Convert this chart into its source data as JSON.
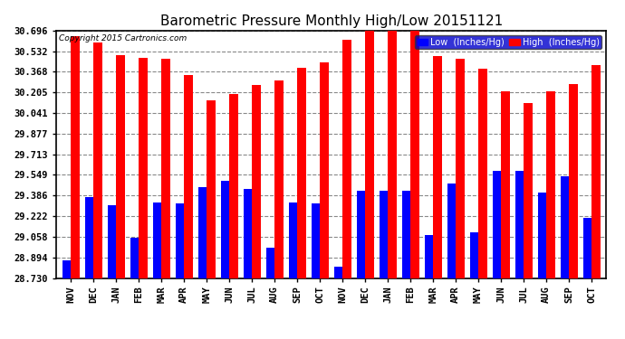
{
  "title": "Barometric Pressure Monthly High/Low 20151121",
  "copyright": "Copyright 2015 Cartronics.com",
  "legend_low": "Low  (Inches/Hg)",
  "legend_high": "High  (Inches/Hg)",
  "categories": [
    "NOV",
    "DEC",
    "JAN",
    "FEB",
    "MAR",
    "APR",
    "MAY",
    "JUN",
    "JUL",
    "AUG",
    "SEP",
    "OCT",
    "NOV",
    "DEC",
    "JAN",
    "FEB",
    "MAR",
    "APR",
    "MAY",
    "JUN",
    "JUL",
    "AUG",
    "SEP",
    "OCT"
  ],
  "high_values": [
    30.65,
    30.6,
    30.5,
    30.48,
    30.47,
    30.34,
    30.14,
    30.19,
    30.26,
    30.3,
    30.4,
    30.44,
    30.62,
    30.693,
    30.72,
    30.7,
    30.49,
    30.47,
    30.39,
    30.21,
    30.12,
    30.21,
    30.27,
    30.42
  ],
  "low_values": [
    28.87,
    29.37,
    29.31,
    29.05,
    29.33,
    29.32,
    29.45,
    29.5,
    29.44,
    28.97,
    29.33,
    29.32,
    28.82,
    29.42,
    29.42,
    29.42,
    29.07,
    29.48,
    29.09,
    29.58,
    29.58,
    29.41,
    29.54,
    29.21
  ],
  "color_high": "#ff0000",
  "color_low": "#0000ff",
  "ymin": 28.73,
  "ymax": 30.696,
  "yticks": [
    28.73,
    28.894,
    29.058,
    29.222,
    29.386,
    29.549,
    29.713,
    29.877,
    30.041,
    30.205,
    30.368,
    30.532,
    30.696
  ],
  "background_color": "#ffffff",
  "plot_bg_color": "#ffffff",
  "grid_color": "#888888",
  "title_fontsize": 11,
  "tick_fontsize": 7.5,
  "bar_width": 0.38
}
